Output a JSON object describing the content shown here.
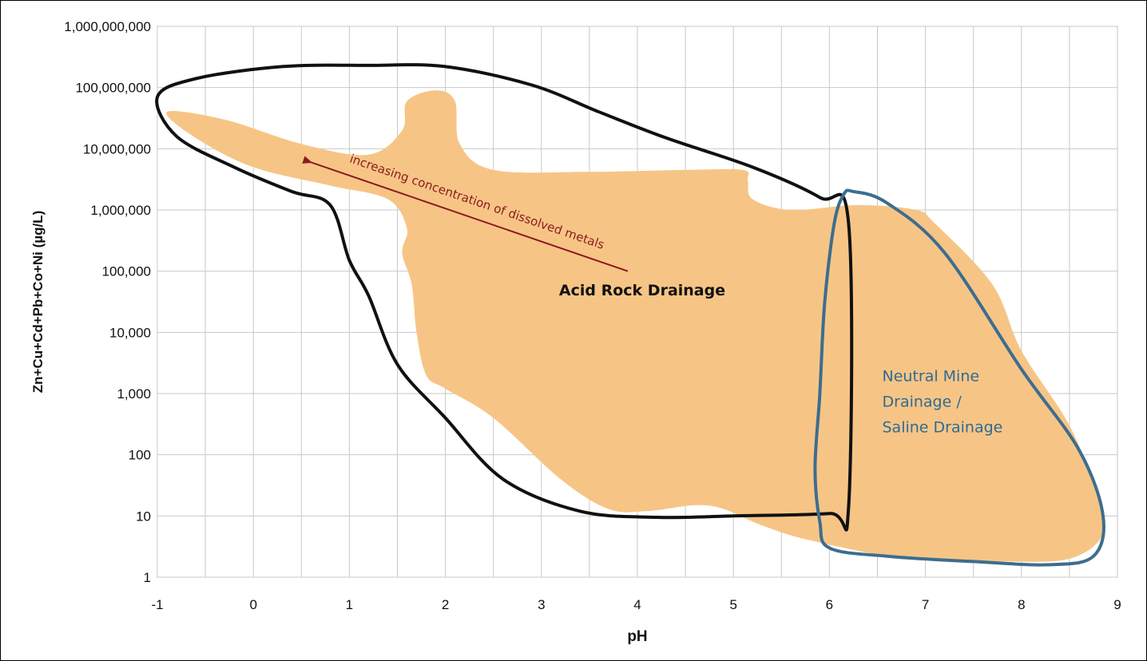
{
  "chart_data": {
    "type": "area",
    "title": "",
    "xlabel": "pH",
    "ylabel": "Zn+Cu+Cd+Pb+Co+Ni (µg/L)",
    "x_ticks": [
      "-1",
      "0",
      "1",
      "2",
      "3",
      "4",
      "5",
      "6",
      "7",
      "8",
      "9"
    ],
    "y_ticks": [
      "1",
      "10",
      "100",
      "1,000",
      "10,000",
      "100,000",
      "1,000,000",
      "10,000,000",
      "100,000,000",
      "1,000,000,000"
    ],
    "xlim": [
      -1,
      9
    ],
    "ylim": [
      1,
      1000000000
    ],
    "y_scale": "log",
    "grid": true,
    "regions": [
      {
        "name": "observed-data-envelope",
        "kind": "filled",
        "color": "#f6c586",
        "points": [
          [
            -0.9,
            40000000
          ],
          [
            -0.3,
            30000000
          ],
          [
            0.5,
            12000000
          ],
          [
            1.2,
            8000000
          ],
          [
            1.55,
            20000000
          ],
          [
            1.6,
            60000000
          ],
          [
            1.9,
            90000000
          ],
          [
            2.1,
            60000000
          ],
          [
            2.15,
            12000000
          ],
          [
            2.5,
            4500000
          ],
          [
            3.5,
            4200000
          ],
          [
            4.5,
            4500000
          ],
          [
            5.1,
            4500000
          ],
          [
            5.15,
            3000000
          ],
          [
            5.2,
            1500000
          ],
          [
            5.6,
            1000000
          ],
          [
            6.3,
            1200000
          ],
          [
            6.9,
            1000000
          ],
          [
            7.1,
            600000
          ],
          [
            7.7,
            60000
          ],
          [
            8.0,
            5000
          ],
          [
            8.5,
            300
          ],
          [
            8.8,
            20
          ],
          [
            8.85,
            5
          ],
          [
            8.5,
            2
          ],
          [
            7.8,
            1.8
          ],
          [
            6.8,
            2
          ],
          [
            5.8,
            4
          ],
          [
            5.3,
            7
          ],
          [
            4.9,
            13
          ],
          [
            4.6,
            15
          ],
          [
            4.1,
            12
          ],
          [
            3.7,
            13
          ],
          [
            3.2,
            40
          ],
          [
            2.5,
            400
          ],
          [
            2.0,
            1200
          ],
          [
            1.8,
            2000
          ],
          [
            1.7,
            10000
          ],
          [
            1.65,
            60000
          ],
          [
            1.55,
            200000
          ],
          [
            1.6,
            500000
          ],
          [
            1.4,
            1500000
          ],
          [
            0.8,
            2500000
          ],
          [
            0,
            5000000
          ],
          [
            -0.6,
            15000000
          ]
        ]
      },
      {
        "name": "acid-rock-drainage",
        "label": "Acid Rock Drainage",
        "kind": "outline",
        "color": "#111111",
        "points": [
          [
            -1,
            70000000
          ],
          [
            -0.6,
            140000000
          ],
          [
            0.3,
            220000000
          ],
          [
            1.2,
            230000000
          ],
          [
            2,
            220000000
          ],
          [
            2.9,
            110000000
          ],
          [
            3.6,
            40000000
          ],
          [
            4.3,
            15000000
          ],
          [
            5.2,
            5000000
          ],
          [
            5.9,
            1600000
          ],
          [
            6.2,
            600000
          ],
          [
            6.2,
            14
          ],
          [
            6.0,
            11
          ],
          [
            5.0,
            10
          ],
          [
            4.2,
            9.5
          ],
          [
            3.4,
            12
          ],
          [
            2.6,
            40
          ],
          [
            2.0,
            400
          ],
          [
            1.5,
            3000
          ],
          [
            1.2,
            40000
          ],
          [
            1.0,
            150000
          ],
          [
            0.8,
            1200000
          ],
          [
            0.4,
            2000000
          ],
          [
            -0.2,
            5000000
          ],
          [
            -0.8,
            16000000
          ]
        ]
      },
      {
        "name": "neutral-mine-drainage",
        "label": "Neutral Mine Drainage / Saline Drainage",
        "kind": "outline",
        "color": "#3d6d8f",
        "points": [
          [
            6.25,
            2000000
          ],
          [
            6.6,
            1300000
          ],
          [
            7.2,
            200000
          ],
          [
            8.0,
            2500
          ],
          [
            8.6,
            120
          ],
          [
            8.85,
            10
          ],
          [
            8.75,
            2.2
          ],
          [
            8.3,
            1.6
          ],
          [
            7.5,
            1.8
          ],
          [
            6.6,
            2.2
          ],
          [
            6.0,
            3
          ],
          [
            5.9,
            8
          ],
          [
            5.85,
            60
          ],
          [
            5.9,
            1000
          ],
          [
            5.95,
            30000
          ],
          [
            6.05,
            600000
          ],
          [
            6.15,
            1800000
          ]
        ]
      }
    ],
    "annotations": [
      {
        "name": "arrow-label",
        "text": "increasing concentration of dissolved metals",
        "color": "#8b1a1f"
      },
      {
        "name": "acid-label",
        "text": "Acid Rock Drainage",
        "color": "#111111"
      },
      {
        "name": "neutral-label",
        "lines": [
          "Neutral Mine",
          "Drainage /",
          "Saline Drainage"
        ],
        "color": "#2f6b93"
      }
    ],
    "arrow": {
      "from": [
        3.9,
        100000
      ],
      "to": [
        0.6,
        6000000
      ],
      "color": "#8b1a1f"
    }
  }
}
